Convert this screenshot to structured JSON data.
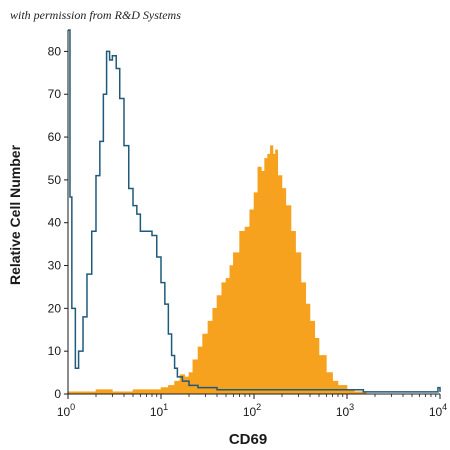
{
  "credit": "with permission from R&D Systems",
  "chart_data": {
    "type": "area",
    "title": "",
    "xlabel": "CD69",
    "ylabel": "Relative Cell Number",
    "xscale": "log",
    "xlim": [
      1,
      10000
    ],
    "ylim": [
      0,
      85
    ],
    "y_ticks": [
      0,
      10,
      20,
      30,
      40,
      50,
      60,
      70,
      80
    ],
    "x_ticks": [
      {
        "value": 1,
        "base": "10",
        "exp": "0"
      },
      {
        "value": 10,
        "base": "10",
        "exp": "1"
      },
      {
        "value": 100,
        "base": "10",
        "exp": "2"
      },
      {
        "value": 1000,
        "base": "10",
        "exp": "3"
      },
      {
        "value": 10000,
        "base": "10",
        "exp": "4"
      }
    ],
    "grid": false,
    "legend": "none",
    "series": [
      {
        "style": "outline",
        "color": "#1f5a7a",
        "x": [
          1,
          1.05,
          1.1,
          1.2,
          1.3,
          1.45,
          1.6,
          1.8,
          2.0,
          2.2,
          2.4,
          2.6,
          2.8,
          3.0,
          3.3,
          3.6,
          4.0,
          4.5,
          5.0,
          5.5,
          6.0,
          7.0,
          8.0,
          9.0,
          10,
          11,
          12,
          13,
          14,
          15,
          17,
          20,
          25,
          30,
          40,
          50,
          70,
          100,
          150,
          200,
          300,
          500,
          700,
          1000,
          1500,
          2000,
          3000,
          5000,
          7000,
          8500,
          9500,
          10000
        ],
        "y": [
          85,
          46,
          20,
          6,
          10,
          18,
          28,
          38,
          51,
          59,
          70,
          80,
          78,
          79,
          76,
          69,
          58,
          48,
          44,
          42,
          38,
          38,
          37,
          32,
          26,
          21,
          14,
          9,
          6,
          4,
          3,
          2,
          1.5,
          1.5,
          1,
          1,
          1,
          1,
          1,
          1,
          1,
          1,
          1,
          1,
          0.5,
          0.5,
          0.5,
          0.5,
          0.5,
          0.5,
          1.5,
          0.5
        ]
      },
      {
        "style": "filled",
        "color": "#f6a21e",
        "x": [
          1,
          2,
          3,
          5,
          8,
          10,
          12,
          14,
          16,
          18,
          20,
          22,
          25,
          28,
          32,
          36,
          40,
          45,
          50,
          55,
          60,
          70,
          80,
          90,
          100,
          110,
          120,
          130,
          140,
          150,
          160,
          170,
          180,
          200,
          220,
          250,
          280,
          320,
          360,
          400,
          450,
          500,
          600,
          700,
          800,
          1000,
          1200,
          1500
        ],
        "y": [
          0.5,
          1,
          0.5,
          1,
          1,
          1.5,
          2,
          3,
          4.5,
          4,
          5,
          8,
          11,
          14,
          17,
          20,
          23,
          26,
          27,
          30,
          33,
          38,
          39,
          43,
          47,
          53,
          52,
          55,
          56,
          58,
          56,
          57,
          51,
          48,
          44,
          38,
          33,
          26,
          21,
          17,
          13,
          9,
          5,
          3,
          2,
          1,
          0.5,
          0.5
        ]
      }
    ]
  }
}
